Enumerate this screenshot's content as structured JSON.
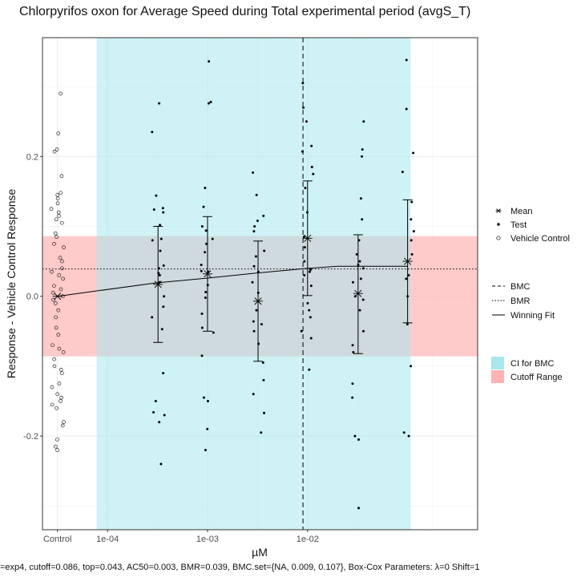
{
  "chart_data": {
    "type": "scatter",
    "title": "Chlorpyrifos oxon for Average Speed during Total experimental period (avgS_T)",
    "xlabel": "µM",
    "ylabel": "Response - Vehicle Control Response",
    "x_scale": "log10",
    "x_ticks": [
      {
        "label": "Control",
        "value": "control"
      },
      {
        "label": "1e-04",
        "value": 0.0001
      },
      {
        "label": "1e-03",
        "value": 0.001
      },
      {
        "label": "1e-02",
        "value": 0.01
      }
    ],
    "y_ticks": [
      {
        "label": "-0.2",
        "value": -0.2
      },
      {
        "label": "0.0",
        "value": 0.0
      },
      {
        "label": "0.2",
        "value": 0.2
      }
    ],
    "xlim_log10": [
      -4.65,
      -0.3
    ],
    "ylim": [
      -0.334,
      0.37
    ],
    "ci_for_bmc": [
      7.8e-05,
      0.107
    ],
    "cutoff_range": [
      -0.086,
      0.086
    ],
    "bmc": 0.009,
    "bmr": 0.039,
    "colors": {
      "ci_fill": "#a6e8ec",
      "cutoff_fill": "#ffb3b3",
      "mark": "#000000",
      "grid": "#ebebeb"
    },
    "means": [
      {
        "x": "control",
        "y": 0.0
      },
      {
        "x": 0.00032,
        "y": 0.017,
        "lower": -0.066,
        "upper": 0.1
      },
      {
        "x": 0.001,
        "y": 0.032,
        "lower": -0.05,
        "upper": 0.114
      },
      {
        "x": 0.0032,
        "y": -0.007,
        "lower": -0.093,
        "upper": 0.079
      },
      {
        "x": 0.01,
        "y": 0.083,
        "lower": 0.001,
        "upper": 0.165
      },
      {
        "x": 0.032,
        "y": 0.004,
        "lower": -0.082,
        "upper": 0.088
      },
      {
        "x": 0.1,
        "y": 0.05,
        "lower": -0.038,
        "upper": 0.138
      }
    ],
    "winning_fit": [
      {
        "x": "control",
        "y": 0.0
      },
      {
        "x": 0.0003,
        "y": 0.019
      },
      {
        "x": 0.001,
        "y": 0.026
      },
      {
        "x": 0.003,
        "y": 0.033
      },
      {
        "x": 0.01,
        "y": 0.04
      },
      {
        "x": 0.02,
        "y": 0.043
      },
      {
        "x": 0.1,
        "y": 0.043
      }
    ],
    "test_points": [
      {
        "x": 0.00032,
        "y": [
          0.276,
          0.235,
          0.144,
          0.126,
          0.124,
          0.12,
          0.102,
          0.082,
          0.08,
          0.065,
          0.044,
          0.04,
          0.033,
          0.03,
          0.02,
          0.0,
          -0.015,
          -0.03,
          -0.047,
          -0.11,
          -0.15,
          -0.166,
          -0.17,
          -0.18,
          -0.24
        ]
      },
      {
        "x": 0.001,
        "y": [
          0.336,
          0.278,
          0.276,
          0.155,
          0.128,
          0.1,
          0.094,
          0.082,
          0.075,
          0.063,
          0.045,
          0.036,
          0.035,
          0.016,
          0.006,
          -0.002,
          -0.025,
          -0.045,
          -0.052,
          -0.085,
          -0.145,
          -0.15,
          -0.19,
          -0.22
        ]
      },
      {
        "x": 0.0032,
        "y": [
          0.177,
          0.145,
          0.115,
          0.108,
          0.1,
          0.093,
          0.065,
          0.057,
          0.043,
          0.035,
          0.02,
          0.005,
          -0.02,
          -0.036,
          -0.04,
          -0.05,
          -0.068,
          -0.095,
          -0.12,
          -0.14,
          -0.167,
          -0.195
        ]
      },
      {
        "x": 0.01,
        "y": [
          0.305,
          0.27,
          0.25,
          0.215,
          0.207,
          0.185,
          0.175,
          0.155,
          0.12,
          0.085,
          0.07,
          0.05,
          0.038,
          0.035,
          0.03,
          0.015,
          -0.01,
          -0.02,
          -0.03,
          -0.05,
          -0.06,
          -0.105
        ]
      },
      {
        "x": 0.032,
        "y": [
          0.25,
          0.21,
          0.2,
          0.14,
          0.11,
          0.08,
          0.06,
          0.05,
          0.045,
          0.04,
          0.025,
          0.02,
          0.0,
          -0.005,
          -0.02,
          -0.05,
          -0.07,
          -0.08,
          -0.125,
          -0.145,
          -0.2,
          -0.205,
          -0.303
        ]
      },
      {
        "x": 0.1,
        "y": [
          0.338,
          0.268,
          0.205,
          0.178,
          0.135,
          0.11,
          0.093,
          0.08,
          0.06,
          0.03,
          0.025,
          0.0,
          -0.04,
          -0.1,
          -0.195,
          -0.2
        ]
      }
    ],
    "vehicle_control_points": [
      0.29,
      0.233,
      0.21,
      0.207,
      0.172,
      0.148,
      0.145,
      0.14,
      0.133,
      0.125,
      0.12,
      0.115,
      0.11,
      0.105,
      0.09,
      0.085,
      0.075,
      0.07,
      0.055,
      0.05,
      0.04,
      0.035,
      0.03,
      0.025,
      0.015,
      0.01,
      0.005,
      0.0,
      -0.005,
      -0.01,
      -0.02,
      -0.03,
      -0.045,
      -0.055,
      -0.07,
      -0.075,
      -0.08,
      -0.09,
      -0.1,
      -0.105,
      -0.11,
      -0.125,
      -0.13,
      -0.14,
      -0.145,
      -0.15,
      -0.155,
      -0.16,
      -0.18,
      -0.185,
      -0.205,
      -0.215,
      -0.22
    ],
    "legend": {
      "placement": "right",
      "group1": [
        {
          "label": "Mean",
          "symbol": "asterisk"
        },
        {
          "label": "Test",
          "symbol": "dot"
        },
        {
          "label": "Vehicle Control",
          "symbol": "open-circle"
        }
      ],
      "group2": [
        {
          "label": "BMC",
          "symbol": "dashed-line"
        },
        {
          "label": "BMR",
          "symbol": "dotted-line"
        },
        {
          "label": "Winning Fit",
          "symbol": "solid-line"
        }
      ],
      "group3": [
        {
          "label": "CI for BMC",
          "symbol": "cyan-box"
        },
        {
          "label": "Cutoff Range",
          "symbol": "pink-box"
        }
      ]
    },
    "caption": "=exp4, cutoff=0.086, top=0.043, AC50=0.003, BMR=0.039, BMC.set={NA, 0.009, 0.107}, Box-Cox Parameters: λ=0 Shift=1"
  }
}
